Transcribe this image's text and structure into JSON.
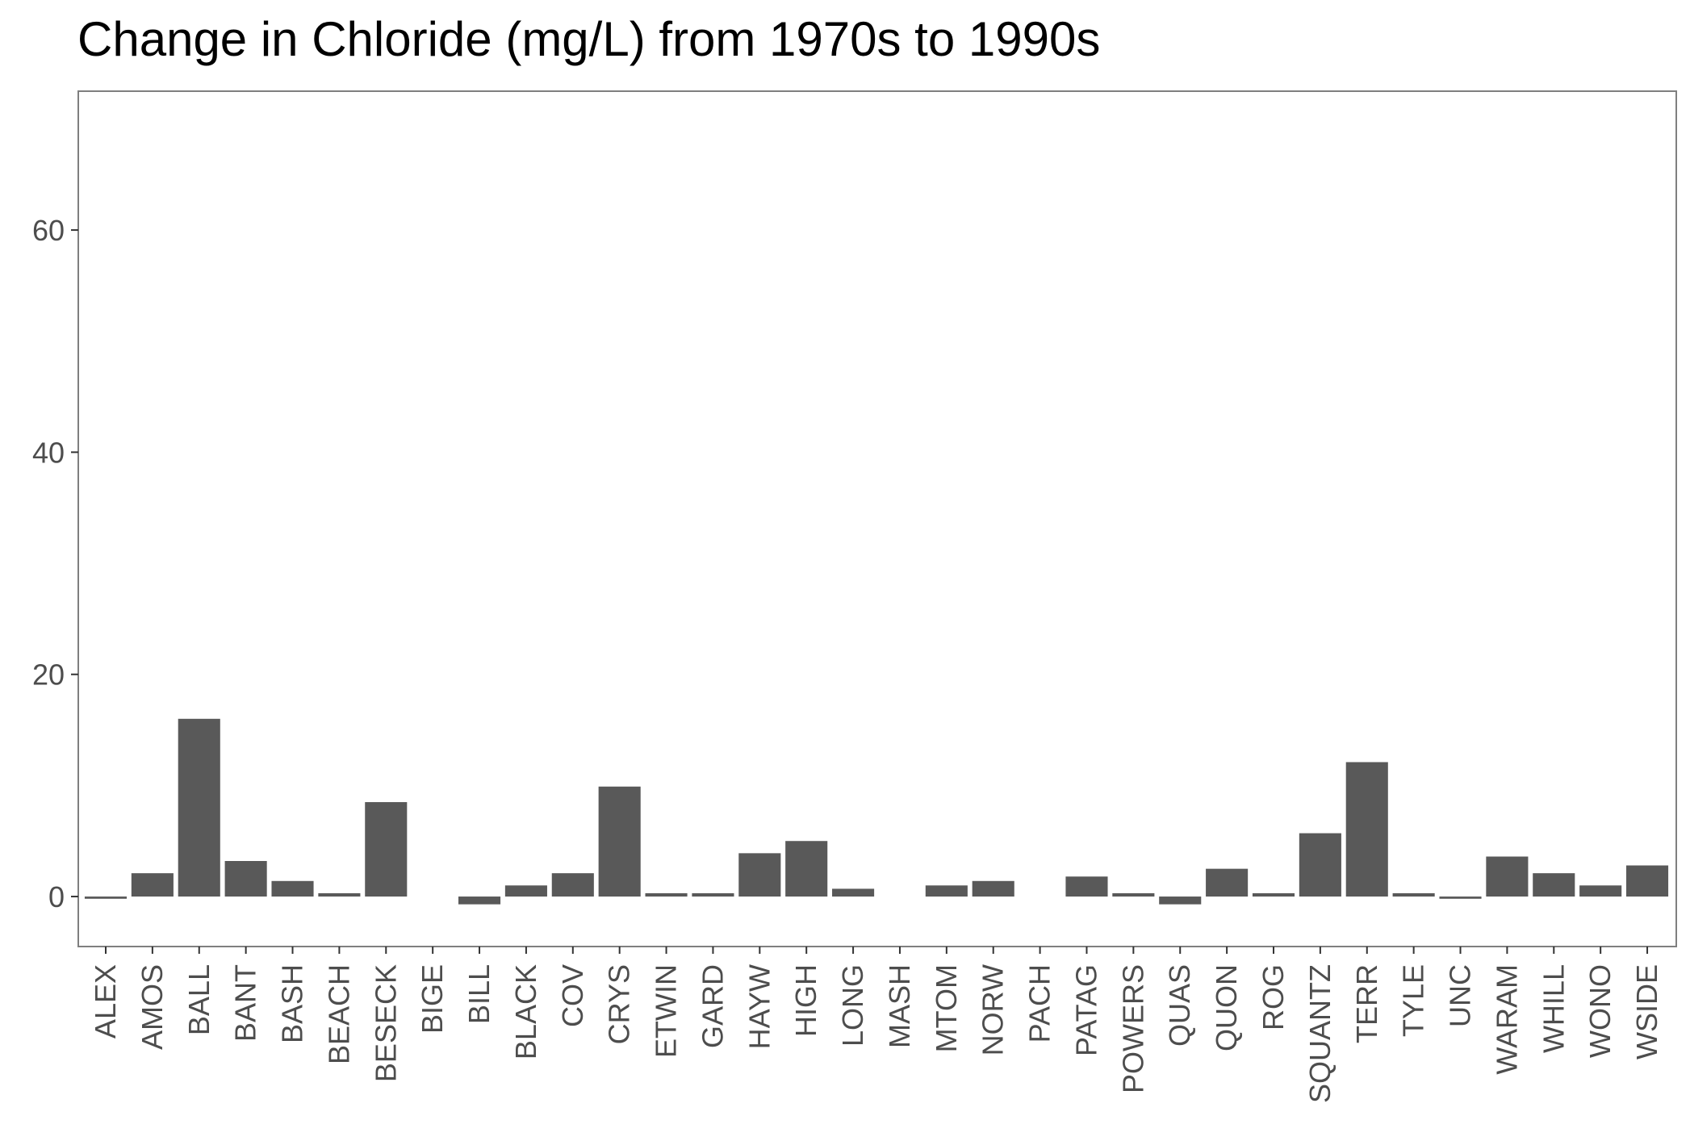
{
  "chart_data": {
    "type": "bar",
    "title": "Change in Chloride (mg/L) from 1970s to 1990s",
    "xlabel": "",
    "ylabel": "",
    "ylim": [
      -4.5,
      72.5
    ],
    "yticks": [
      0,
      20,
      40,
      60
    ],
    "grid": false,
    "bar_color": "#595959",
    "frame_color": "#7f7f7f",
    "categories": [
      "ALEX",
      "AMOS",
      "BALL",
      "BANT",
      "BASH",
      "BEACH",
      "BESECK",
      "BIGE",
      "BILL",
      "BLACK",
      "COV",
      "CRYS",
      "ETWIN",
      "GARD",
      "HAYW",
      "HIGH",
      "LONG",
      "MASH",
      "MTOM",
      "NORW",
      "PACH",
      "PATAG",
      "POWERS",
      "QUAS",
      "QUON",
      "ROG",
      "SQUANTZ",
      "TERR",
      "TYLE",
      "UNC",
      "WARAM",
      "WHILL",
      "WONO",
      "WSIDE"
    ],
    "values": [
      -0.2,
      2.1,
      16.0,
      3.2,
      1.4,
      0.3,
      8.5,
      0,
      -0.7,
      1.0,
      2.1,
      9.9,
      0.3,
      0.3,
      3.9,
      5.0,
      0.7,
      0,
      1.0,
      1.4,
      0,
      1.8,
      0.3,
      -0.7,
      2.5,
      0.3,
      5.7,
      12.1,
      0.3,
      -0.2,
      3.6,
      2.1,
      1.0,
      2.8
    ]
  }
}
